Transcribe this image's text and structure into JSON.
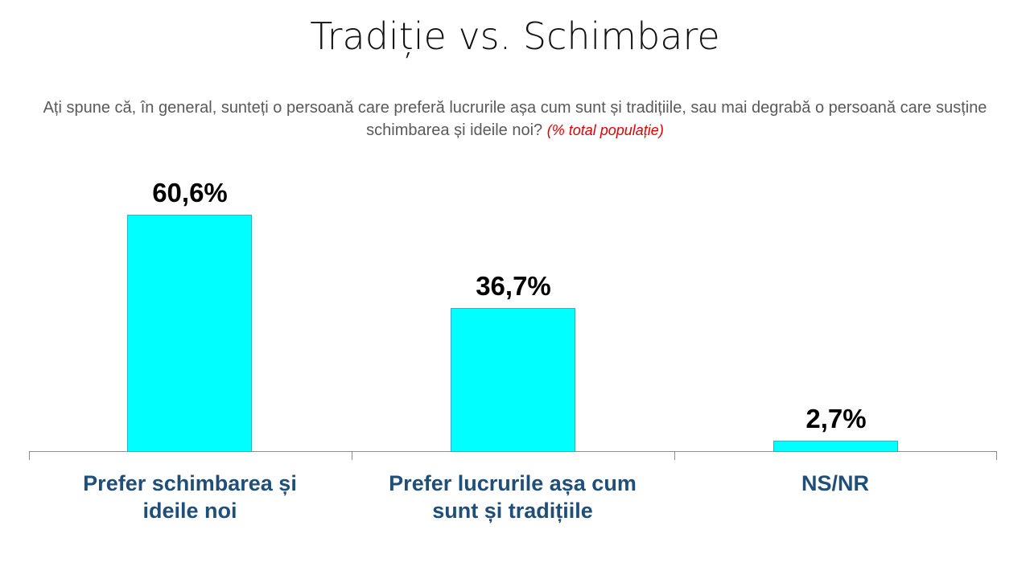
{
  "header": {
    "title": "Tradiție vs. Schimbare",
    "subtitle": "Ați spune că, în general, sunteți o persoană care preferă lucrurile așa cum sunt și tradițiile, sau mai degrabă o persoană care susține schimbarea și ideile noi?",
    "note": "(% total populație)"
  },
  "colors": {
    "bar": "#00ffff",
    "bar_border": "#2bb3c8",
    "category_text": "#1f4e79",
    "note": "#e00000",
    "axis": "#8c8c8c"
  },
  "chart_data": {
    "type": "bar",
    "title": "Tradiție vs. Schimbare",
    "subtitle": "Ați spune că, în general, sunteți o persoană care preferă lucrurile așa cum sunt și tradițiile, sau mai degrabă o persoană care susține schimbarea și ideile noi? (% total populație)",
    "categories": [
      "Prefer schimbarea și ideile noi",
      "Prefer lucrurile așa cum sunt și tradițiile",
      "NS/NR"
    ],
    "values": [
      60.6,
      36.7,
      2.7
    ],
    "labels": [
      "60,6%",
      "36,7%",
      "2,7%"
    ],
    "xlabel": "",
    "ylabel": "",
    "ylim": [
      0,
      65
    ],
    "grid": false,
    "legend": "none"
  },
  "bars": [
    {
      "label_line1": "Prefer schimbarea și",
      "label_line2": "ideile noi",
      "value_label": "60,6%"
    },
    {
      "label_line1": "Prefer lucrurile așa cum",
      "label_line2": "sunt și tradițiile",
      "value_label": "36,7%"
    },
    {
      "label_line1": "NS/NR",
      "label_line2": "",
      "value_label": "2,7%"
    }
  ]
}
